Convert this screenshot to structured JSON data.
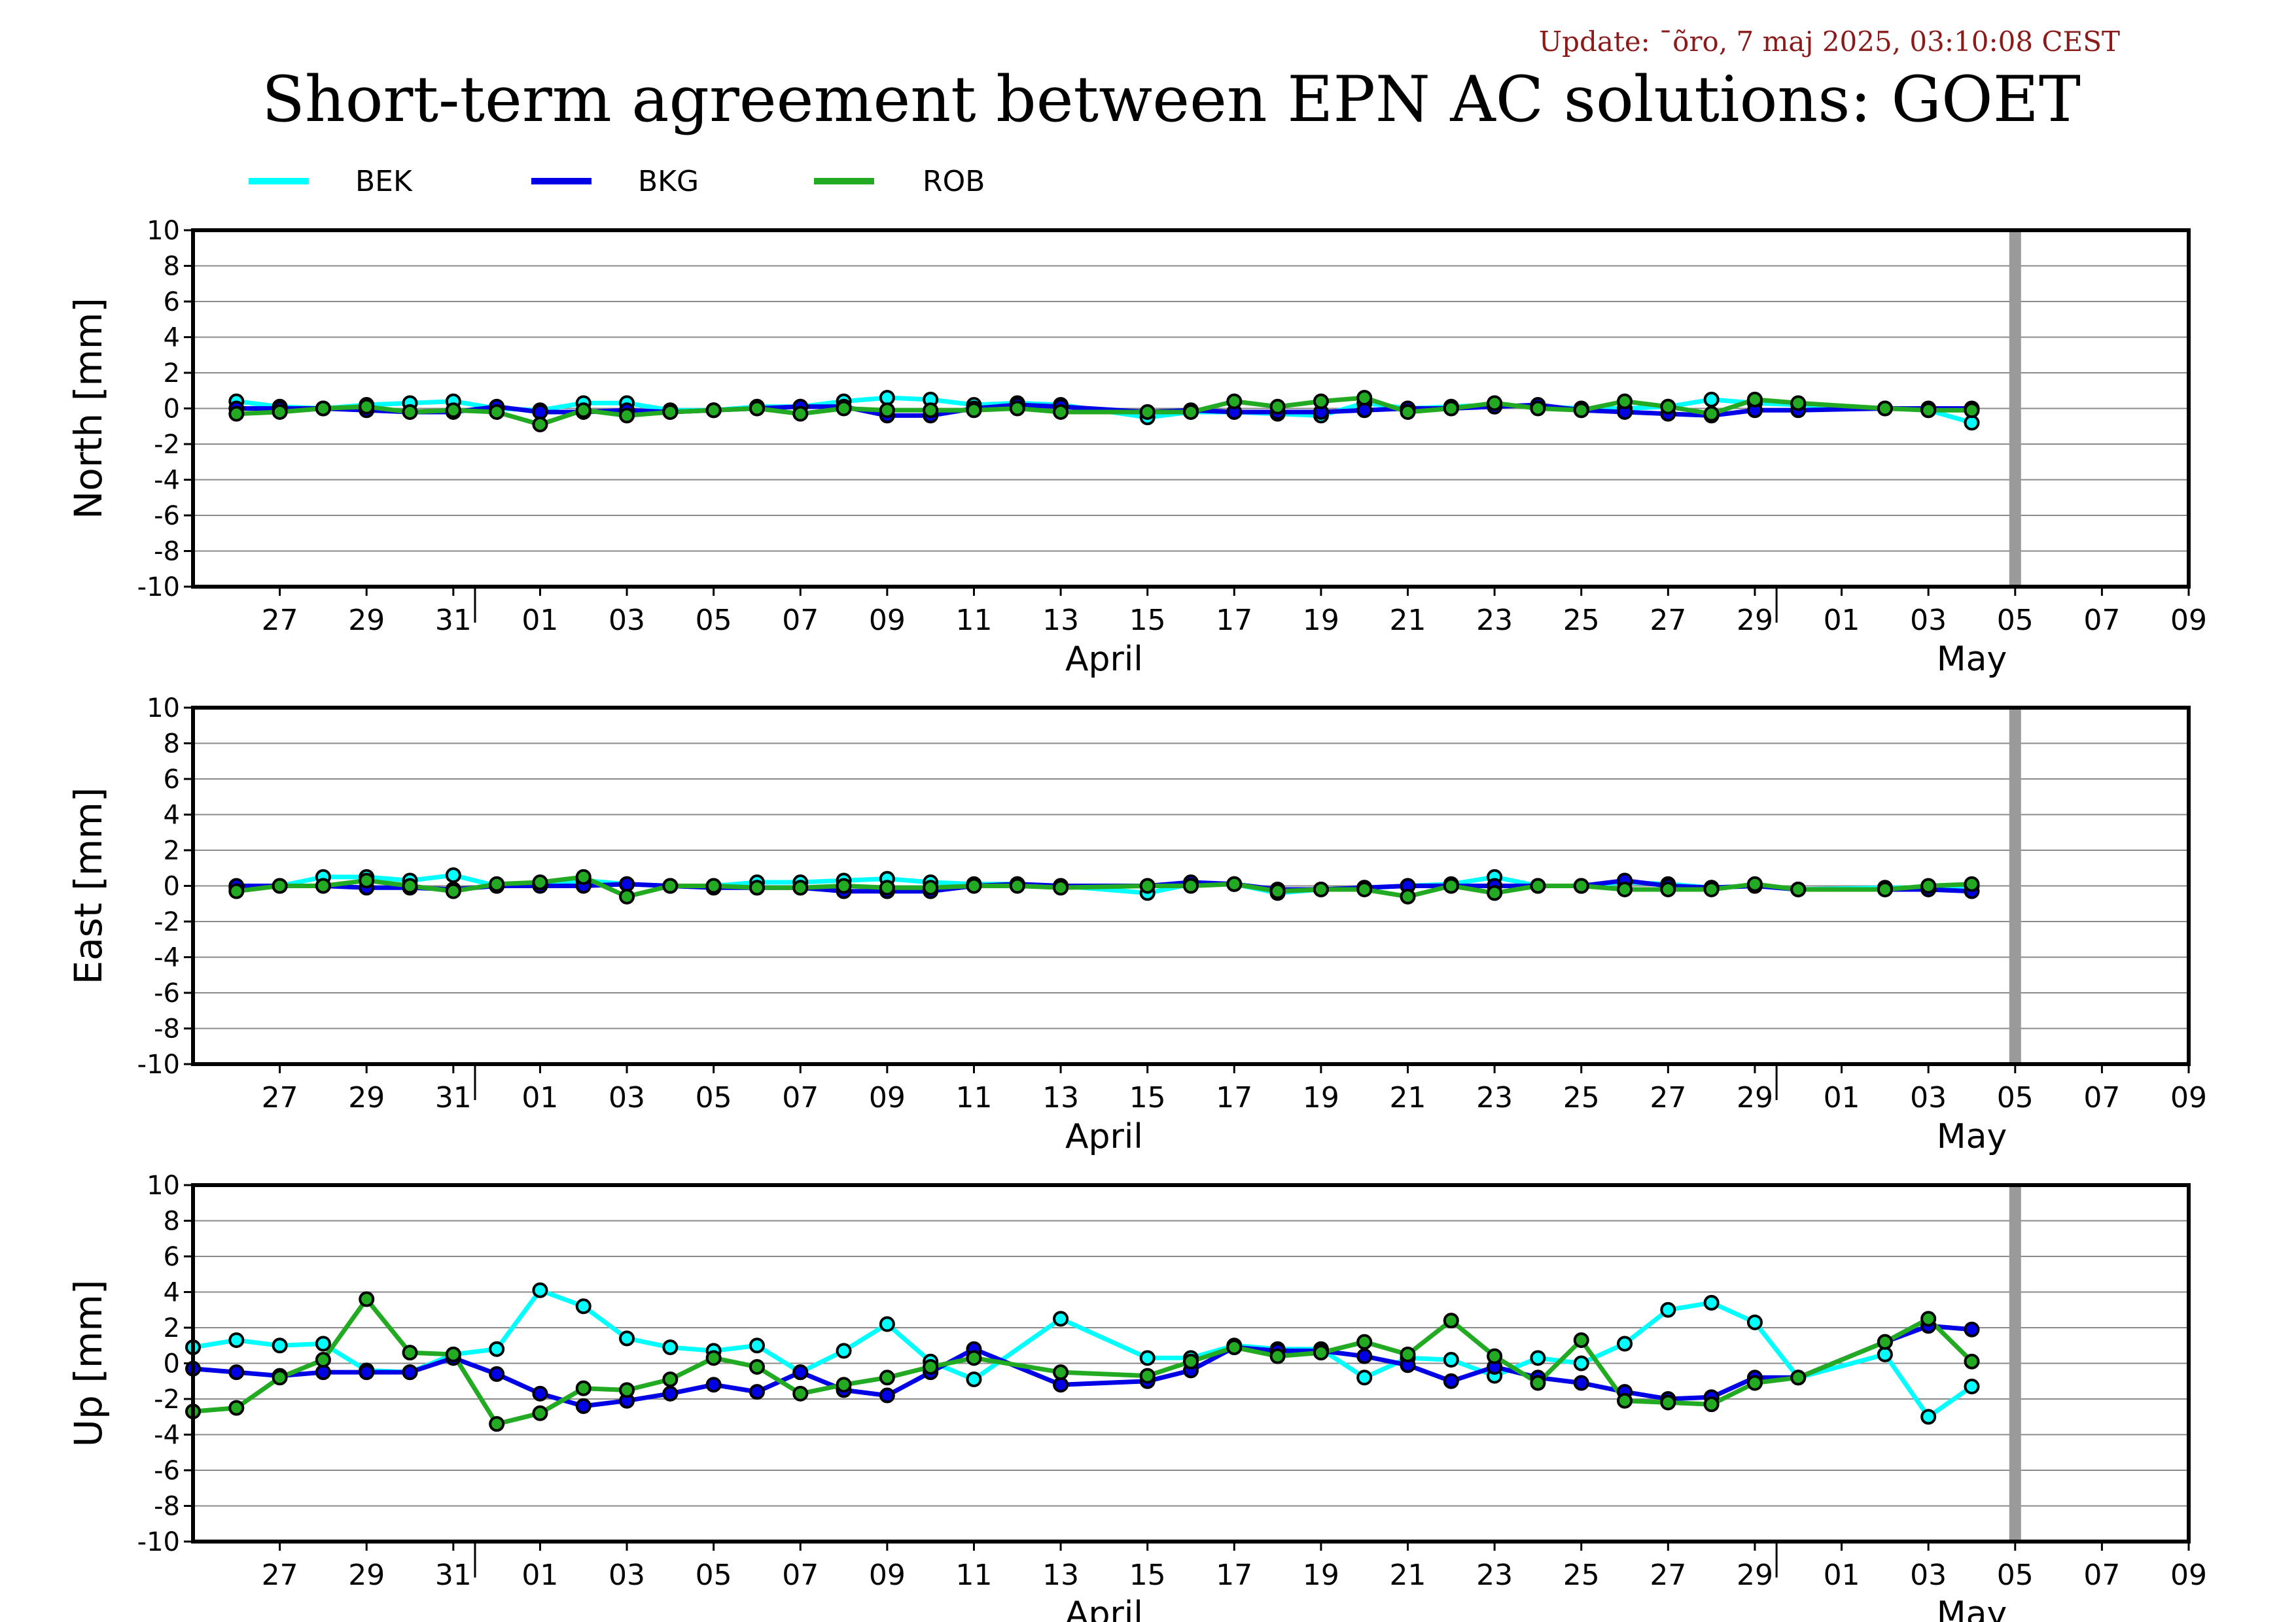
{
  "header": {
    "update": "Update: ¯õro, 7 maj 2025, 03:10:08 CEST",
    "update_color": "#8b1a1a",
    "title": "Short-term agreement between EPN AC solutions: GOET"
  },
  "legend": [
    {
      "name": "BEK",
      "color": "#00ffff"
    },
    {
      "name": "BKG",
      "color": "#0000e6"
    },
    {
      "name": "ROB",
      "color": "#22aa22"
    }
  ],
  "x_axis": {
    "tick_labels": [
      "27",
      "29",
      "31",
      "01",
      "03",
      "05",
      "07",
      "09",
      "11",
      "13",
      "15",
      "17",
      "19",
      "21",
      "23",
      "25",
      "27",
      "29",
      "01",
      "03",
      "05",
      "07",
      "09"
    ],
    "month_labels": [
      {
        "label": "April",
        "at": "2025-04-15"
      },
      {
        "label": "May",
        "at": "2025-05-05"
      }
    ],
    "current_day_marker": "2025-05-06"
  },
  "chart_data": [
    {
      "type": "line",
      "ylabel": "North [mm]",
      "ylim": [
        -10,
        10
      ],
      "yticks": [
        10,
        8,
        6,
        4,
        2,
        0,
        -2,
        -4,
        -6,
        -8,
        -10
      ],
      "xlim": [
        "2025-03-25",
        "2025-05-10"
      ],
      "grid": true,
      "x": [
        "2025-03-26",
        "2025-03-27",
        "2025-03-28",
        "2025-03-29",
        "2025-03-30",
        "2025-03-31",
        "2025-04-01",
        "2025-04-02",
        "2025-04-03",
        "2025-04-04",
        "2025-04-05",
        "2025-04-06",
        "2025-04-07",
        "2025-04-08",
        "2025-04-09",
        "2025-04-10",
        "2025-04-11",
        "2025-04-12",
        "2025-04-13",
        "2025-04-14",
        "2025-04-16",
        "2025-04-17",
        "2025-04-18",
        "2025-04-19",
        "2025-04-20",
        "2025-04-21",
        "2025-04-22",
        "2025-04-23",
        "2025-04-24",
        "2025-04-25",
        "2025-04-26",
        "2025-04-27",
        "2025-04-28",
        "2025-04-29",
        "2025-04-30",
        "2025-05-01",
        "2025-05-03",
        "2025-05-04",
        "2025-05-05"
      ],
      "series": [
        {
          "name": "BEK",
          "values": [
            0.4,
            0.1,
            0.0,
            0.2,
            0.3,
            0.4,
            0.0,
            -0.1,
            0.3,
            0.3,
            -0.1,
            -0.1,
            0.1,
            0.1,
            0.4,
            0.6,
            0.5,
            0.2,
            0.3,
            0.2,
            -0.5,
            -0.2,
            -0.2,
            -0.3,
            -0.4,
            0.3,
            0.0,
            0.1,
            0.2,
            0.1,
            0.0,
            0.0,
            0.1,
            0.5,
            0.3,
            0.2,
            0.0,
            -0.1,
            -0.8
          ]
        },
        {
          "name": "BKG",
          "values": [
            0.0,
            0.0,
            0.0,
            -0.1,
            -0.2,
            -0.2,
            0.1,
            -0.2,
            -0.2,
            -0.1,
            -0.2,
            -0.1,
            0.0,
            0.1,
            0.1,
            -0.4,
            -0.4,
            0.0,
            0.2,
            0.1,
            -0.2,
            -0.1,
            -0.2,
            -0.2,
            -0.2,
            -0.1,
            0.0,
            0.0,
            0.1,
            0.2,
            -0.1,
            -0.2,
            -0.3,
            -0.4,
            -0.1,
            -0.1,
            0.0,
            0.0,
            0.0
          ]
        },
        {
          "name": "ROB",
          "values": [
            -0.3,
            -0.2,
            0.0,
            0.1,
            -0.2,
            -0.1,
            -0.2,
            -0.9,
            -0.1,
            -0.4,
            -0.2,
            -0.1,
            0.0,
            -0.3,
            0.0,
            -0.1,
            -0.1,
            -0.1,
            0.0,
            -0.2,
            -0.2,
            -0.2,
            0.4,
            0.1,
            0.4,
            0.6,
            -0.2,
            0.0,
            0.3,
            0.0,
            -0.1,
            0.4,
            0.1,
            -0.3,
            0.5,
            0.3,
            0.0,
            -0.1,
            -0.1
          ]
        }
      ]
    },
    {
      "type": "line",
      "ylabel": "East [mm]",
      "ylim": [
        -10,
        10
      ],
      "yticks": [
        10,
        8,
        6,
        4,
        2,
        0,
        -2,
        -4,
        -6,
        -8,
        -10
      ],
      "xlim": [
        "2025-03-25",
        "2025-05-10"
      ],
      "grid": true,
      "x": [
        "2025-03-26",
        "2025-03-27",
        "2025-03-28",
        "2025-03-29",
        "2025-03-30",
        "2025-03-31",
        "2025-04-01",
        "2025-04-02",
        "2025-04-03",
        "2025-04-04",
        "2025-04-05",
        "2025-04-06",
        "2025-04-07",
        "2025-04-08",
        "2025-04-09",
        "2025-04-10",
        "2025-04-11",
        "2025-04-12",
        "2025-04-13",
        "2025-04-14",
        "2025-04-16",
        "2025-04-17",
        "2025-04-18",
        "2025-04-19",
        "2025-04-20",
        "2025-04-21",
        "2025-04-22",
        "2025-04-23",
        "2025-04-24",
        "2025-04-25",
        "2025-04-26",
        "2025-04-27",
        "2025-04-28",
        "2025-04-29",
        "2025-04-30",
        "2025-05-01",
        "2025-05-03",
        "2025-05-04",
        "2025-05-05"
      ],
      "series": [
        {
          "name": "BEK",
          "values": [
            -0.1,
            0.0,
            0.5,
            0.5,
            0.3,
            0.6,
            0.0,
            0.1,
            0.3,
            0.1,
            0.0,
            0.0,
            0.2,
            0.2,
            0.3,
            0.4,
            0.2,
            0.1,
            0.1,
            0.0,
            -0.4,
            0.1,
            0.1,
            -0.4,
            -0.2,
            -0.1,
            0.0,
            0.1,
            0.5,
            0.0,
            0.0,
            0.2,
            0.1,
            -0.1,
            0.0,
            -0.2,
            -0.1,
            -0.1,
            0.0
          ]
        },
        {
          "name": "BKG",
          "values": [
            0.0,
            0.0,
            0.0,
            -0.1,
            -0.1,
            -0.2,
            0.0,
            0.0,
            0.0,
            0.1,
            0.0,
            -0.1,
            -0.1,
            -0.1,
            -0.3,
            -0.3,
            -0.3,
            0.0,
            0.1,
            0.0,
            0.0,
            0.2,
            0.1,
            -0.2,
            -0.2,
            -0.1,
            0.0,
            0.0,
            0.0,
            0.0,
            0.0,
            0.3,
            0.0,
            -0.1,
            0.0,
            -0.2,
            -0.2,
            -0.2,
            -0.3
          ]
        },
        {
          "name": "ROB",
          "values": [
            -0.3,
            0.0,
            0.0,
            0.3,
            0.0,
            -0.3,
            0.1,
            0.2,
            0.5,
            -0.6,
            0.0,
            0.0,
            -0.1,
            -0.1,
            0.0,
            -0.1,
            -0.1,
            0.0,
            0.0,
            -0.1,
            0.0,
            0.0,
            0.1,
            -0.3,
            -0.2,
            -0.2,
            -0.6,
            0.0,
            -0.4,
            0.0,
            0.0,
            -0.2,
            -0.2,
            -0.2,
            0.1,
            -0.2,
            -0.2,
            0.0,
            0.1
          ]
        }
      ]
    },
    {
      "type": "line",
      "ylabel": "Up [mm]",
      "ylim": [
        -10,
        10
      ],
      "yticks": [
        10,
        8,
        6,
        4,
        2,
        0,
        -2,
        -4,
        -6,
        -8,
        -10
      ],
      "xlim": [
        "2025-03-25",
        "2025-05-10"
      ],
      "grid": true,
      "x": [
        "2025-03-25",
        "2025-03-26",
        "2025-03-27",
        "2025-03-28",
        "2025-03-29",
        "2025-03-30",
        "2025-03-31",
        "2025-04-01",
        "2025-04-02",
        "2025-04-03",
        "2025-04-04",
        "2025-04-05",
        "2025-04-06",
        "2025-04-07",
        "2025-04-08",
        "2025-04-09",
        "2025-04-10",
        "2025-04-11",
        "2025-04-12",
        "2025-04-14",
        "2025-04-16",
        "2025-04-17",
        "2025-04-18",
        "2025-04-19",
        "2025-04-20",
        "2025-04-21",
        "2025-04-22",
        "2025-04-23",
        "2025-04-24",
        "2025-04-25",
        "2025-04-26",
        "2025-04-27",
        "2025-04-28",
        "2025-04-29",
        "2025-04-30",
        "2025-05-01",
        "2025-05-03",
        "2025-05-04",
        "2025-05-05"
      ],
      "series": [
        {
          "name": "BEK",
          "values": [
            0.9,
            1.3,
            1.0,
            1.1,
            -0.4,
            -0.5,
            0.5,
            0.8,
            4.1,
            3.2,
            1.4,
            0.9,
            0.7,
            1.0,
            -0.5,
            0.7,
            2.2,
            0.1,
            -0.9,
            2.5,
            0.3,
            0.3,
            1.0,
            0.8,
            0.8,
            -0.8,
            0.3,
            0.2,
            -0.7,
            0.3,
            0.0,
            1.1,
            3.0,
            3.4,
            2.3,
            -0.8,
            0.5,
            -3.0,
            -1.3
          ]
        },
        {
          "name": "BKG",
          "values": [
            -0.3,
            -0.5,
            -0.7,
            -0.5,
            -0.5,
            -0.5,
            0.3,
            -0.6,
            -1.7,
            -2.4,
            -2.1,
            -1.7,
            -1.2,
            -1.6,
            -0.5,
            -1.5,
            -1.8,
            -0.5,
            0.8,
            -1.2,
            -1.0,
            -0.4,
            0.9,
            0.7,
            0.7,
            0.4,
            -0.1,
            -1.0,
            -0.2,
            -0.8,
            -1.1,
            -1.6,
            -2.0,
            -1.9,
            -0.8,
            -0.8,
            1.2,
            2.1,
            1.9
          ]
        },
        {
          "name": "ROB",
          "values": [
            -2.7,
            -2.5,
            -0.8,
            0.2,
            3.6,
            0.6,
            0.5,
            -3.4,
            -2.8,
            -1.4,
            -1.5,
            -0.9,
            0.3,
            -0.2,
            -1.7,
            -1.2,
            -0.8,
            -0.2,
            0.3,
            -0.5,
            -0.7,
            0.1,
            0.9,
            0.4,
            0.6,
            1.2,
            0.5,
            2.4,
            0.4,
            -1.1,
            1.3,
            -2.1,
            -2.2,
            -2.3,
            -1.1,
            -0.8,
            1.2,
            2.5,
            0.1
          ]
        }
      ]
    }
  ]
}
